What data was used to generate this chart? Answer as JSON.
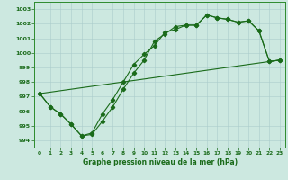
{
  "xlabel": "Graphe pression niveau de la mer (hPa)",
  "background_color": "#cce8e0",
  "grid_color": "#aacccc",
  "line_color": "#1a6b1a",
  "ylim": [
    993.5,
    1003.5
  ],
  "xlim": [
    -0.5,
    23.5
  ],
  "yticks": [
    994,
    995,
    996,
    997,
    998,
    999,
    1000,
    1001,
    1002,
    1003
  ],
  "xticks": [
    0,
    1,
    2,
    3,
    4,
    5,
    6,
    7,
    8,
    9,
    10,
    11,
    12,
    13,
    14,
    15,
    16,
    17,
    18,
    19,
    20,
    21,
    22,
    23
  ],
  "series1": {
    "x": [
      0,
      1,
      2,
      3,
      4,
      5,
      6,
      7,
      8,
      9,
      10,
      11,
      12,
      13,
      14,
      15,
      16,
      17,
      18,
      19,
      20,
      21,
      22,
      23
    ],
    "y": [
      997.2,
      996.3,
      995.8,
      995.1,
      994.3,
      994.4,
      995.3,
      996.3,
      997.5,
      998.6,
      999.5,
      1000.8,
      1001.3,
      1001.8,
      1001.9,
      1001.9,
      1002.6,
      1002.4,
      1002.3,
      1002.1,
      1002.2,
      1001.5,
      999.4,
      999.5
    ]
  },
  "series2": {
    "x": [
      0,
      1,
      2,
      3,
      4,
      5,
      6,
      7,
      8,
      9,
      10,
      11,
      12,
      13,
      14,
      15,
      16,
      17,
      18,
      19,
      20,
      21,
      22,
      23
    ],
    "y": [
      997.2,
      996.3,
      995.8,
      995.1,
      994.3,
      994.5,
      995.8,
      996.8,
      998.0,
      999.2,
      999.9,
      1000.5,
      1001.4,
      1001.6,
      1001.9,
      1001.9,
      1002.6,
      1002.4,
      1002.3,
      1002.1,
      1002.2,
      1001.5,
      999.4,
      999.5
    ]
  },
  "series3": {
    "x": [
      0,
      23
    ],
    "y": [
      997.2,
      999.5
    ]
  }
}
